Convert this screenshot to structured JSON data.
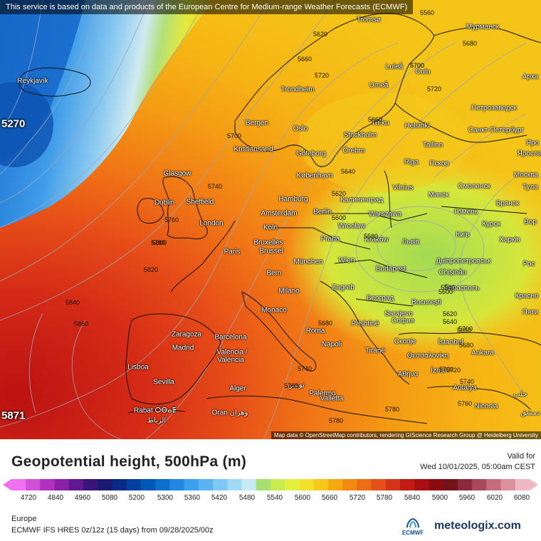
{
  "notice": "This service is based on data and products of the European Centre for Medium-range Weather Forecasts (ECMWF)",
  "attribution": "Map data © OpenStreetMap contributors, rendering GIScience Research Group @ Heidelberg University",
  "title": "Geopotential height, 500hPa (m)",
  "valid_label": "Valid for",
  "valid_date": "Wed 10/01/2025, 05:00am CEST",
  "region": "Europe",
  "model_run": "ECMWF IFS HRES 0z/12z (15 days) from 09/28/2025/00z",
  "logo_ecmwf": "ECMWF",
  "logo_brand": "meteologix.com",
  "extremes": {
    "low": "5270",
    "high": "5871"
  },
  "legend": {
    "ticks": [
      "4720",
      "4840",
      "4960",
      "5080",
      "5200",
      "5300",
      "5360",
      "5420",
      "5480",
      "5540",
      "5600",
      "5660",
      "5720",
      "5780",
      "5840",
      "5900",
      "5960",
      "6020",
      "6080"
    ],
    "colors": [
      "#f070f0",
      "#d050d8",
      "#b030c0",
      "#8a20a8",
      "#601890",
      "#3a1478",
      "#1a1a70",
      "#0a2a88",
      "#0040a0",
      "#0058b8",
      "#0a70d0",
      "#2088e0",
      "#3aa0ee",
      "#5ab4f4",
      "#7cc8f8",
      "#a0daf8",
      "#c8eaf4",
      "#a8e070",
      "#c8ec50",
      "#e4f040",
      "#f4e028",
      "#f8c818",
      "#f6a810",
      "#f28a10",
      "#ee6c14",
      "#e45018",
      "#d63418",
      "#c21c16",
      "#a80e12",
      "#8a0a10",
      "#74121a",
      "#8c2a3c",
      "#a84a5c",
      "#c46c7c",
      "#dc909c",
      "#f0b8c0"
    ]
  },
  "map_cities": [
    {
      "name": "Tromsø"
    },
    {
      "name": "Мурманск"
    },
    {
      "name": "Reykjavík"
    },
    {
      "name": "Luleå"
    },
    {
      "name": "Oulu"
    },
    {
      "name": "Арха"
    },
    {
      "name": "Trondheim"
    },
    {
      "name": "Umeå"
    },
    {
      "name": "Петрозаводск"
    },
    {
      "name": "Bergen"
    },
    {
      "name": "Turku"
    },
    {
      "name": "Helsinki"
    },
    {
      "name": "Санкт-Петербург"
    },
    {
      "name": "Oslo"
    },
    {
      "name": "Stockholm"
    },
    {
      "name": "Örebro"
    },
    {
      "name": "Kristiansand"
    },
    {
      "name": "Göteborg"
    },
    {
      "name": "Tallinn"
    },
    {
      "name": "Яро"
    },
    {
      "name": "Яросла"
    },
    {
      "name": "Псков"
    },
    {
      "name": "Riga"
    },
    {
      "name": "Glasgow"
    },
    {
      "name": "København"
    },
    {
      "name": "Москва"
    },
    {
      "name": "Тула"
    },
    {
      "name": "Vilnius"
    },
    {
      "name": "Смоленск"
    },
    {
      "name": "Минск"
    },
    {
      "name": "Hamburg"
    },
    {
      "name": "Калининград"
    },
    {
      "name": "Брянск"
    },
    {
      "name": "Dublin"
    },
    {
      "name": "Sheffield"
    },
    {
      "name": "Amsterdam"
    },
    {
      "name": "Berlin"
    },
    {
      "name": "Warszawa"
    },
    {
      "name": "Гомель"
    },
    {
      "name": "London"
    },
    {
      "name": "Köln"
    },
    {
      "name": "Wrocław"
    },
    {
      "name": "Курск"
    },
    {
      "name": "Вор"
    },
    {
      "name": "Bruxelles"
    },
    {
      "name": "Brussel"
    },
    {
      "name": "Praha"
    },
    {
      "name": "Kraków"
    },
    {
      "name": "Львів"
    },
    {
      "name": "Київ"
    },
    {
      "name": "Харків"
    },
    {
      "name": "Paris"
    },
    {
      "name": "München"
    },
    {
      "name": "Wien"
    },
    {
      "name": "Дніпропетровськ"
    },
    {
      "name": "Рос"
    },
    {
      "name": "Bern"
    },
    {
      "name": "Budapest"
    },
    {
      "name": "Chișinău"
    },
    {
      "name": "Milano"
    },
    {
      "name": "Zagreb"
    },
    {
      "name": "Тирасполь"
    },
    {
      "name": "Красно"
    },
    {
      "name": "Београд"
    },
    {
      "name": "București"
    },
    {
      "name": "Monaco"
    },
    {
      "name": "Пяти"
    },
    {
      "name": "Sarajevo"
    },
    {
      "name": "Zaragoza"
    },
    {
      "name": "Barcelona"
    },
    {
      "name": "Roma"
    },
    {
      "name": "Prishtinë"
    },
    {
      "name": "София"
    },
    {
      "name": "Madrid"
    },
    {
      "name": "Napoli"
    },
    {
      "name": "Скопје"
    },
    {
      "name": "İstanbul"
    },
    {
      "name": "Valencia /"
    },
    {
      "name": "València"
    },
    {
      "name": "Tiranë"
    },
    {
      "name": "Θεσσαλονίκη"
    },
    {
      "name": "Ankara"
    },
    {
      "name": "Lisboa"
    },
    {
      "name": "Palermo"
    },
    {
      "name": "Αθήνα"
    },
    {
      "name": "İzmir"
    },
    {
      "name": "Sevilla"
    },
    {
      "name": "تونس"
    },
    {
      "name": "Alger"
    },
    {
      "name": "Antalya"
    },
    {
      "name": "Valletta"
    },
    {
      "name": "حلب"
    },
    {
      "name": "Rabat ⵔⴱⴰⵟ"
    },
    {
      "name": "الرباط"
    },
    {
      "name": "Oran وهران"
    },
    {
      "name": "Nicosia"
    },
    {
      "name": "دمشق"
    }
  ],
  "contour_labels": [
    "5560",
    "5620",
    "5680",
    "5660",
    "5700",
    "5720",
    "5700",
    "5660",
    "5720",
    "5700",
    "5640",
    "5620",
    "5600",
    "5740",
    "5760",
    "5780",
    "5580",
    "5540",
    "5800",
    "5820",
    "5840",
    "5860",
    "5680",
    "5700",
    "5740",
    "5760",
    "5780",
    "5600",
    "5620",
    "5640",
    "5660",
    "5680",
    "5700",
    "5720",
    "5740",
    "5760",
    "5780"
  ]
}
